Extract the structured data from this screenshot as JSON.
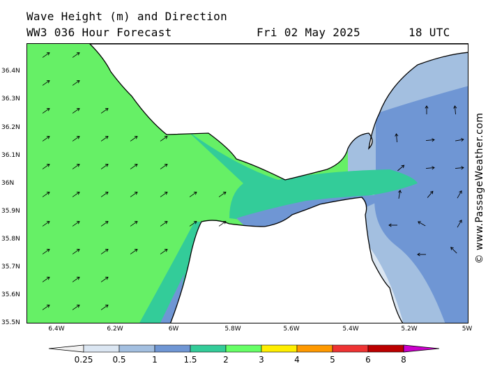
{
  "header": {
    "title": "Wave Height (m) and Direction",
    "model_line": "WW3 036 Hour Forecast",
    "date": "Fri 02 May 2025",
    "time": "18 UTC"
  },
  "credit": "© www.PassageWeather.com",
  "lat_labels": [
    "36.4N",
    "36.3N",
    "36.2N",
    "36.1N",
    "36N",
    "35.9N",
    "35.8N",
    "35.7N",
    "35.6N",
    "35.5N"
  ],
  "lon_labels": [
    "6.4W",
    "6.2W",
    "6W",
    "5.8W",
    "5.6W",
    "5.4W",
    "5.2W",
    "5W"
  ],
  "legend": {
    "labels": [
      "0.25",
      "0.5",
      "1",
      "1.5",
      "2",
      "3",
      "4",
      "5",
      "6",
      "8"
    ],
    "colors": [
      "#f2f2f2",
      "#dbe6f2",
      "#a3bfe0",
      "#6f96d4",
      "#33cc99",
      "#66ff66",
      "#ffee00",
      "#ff9900",
      "#ee3333",
      "#bb0000",
      "#cc00cc"
    ]
  },
  "colors": {
    "sea_green": "#66f066",
    "teal": "#33cc99",
    "blue": "#6f96d4",
    "light_blue": "#a3bfe0",
    "pale_blue": "#dbe6f2",
    "land": "#ffffff",
    "coast": "#000000"
  }
}
